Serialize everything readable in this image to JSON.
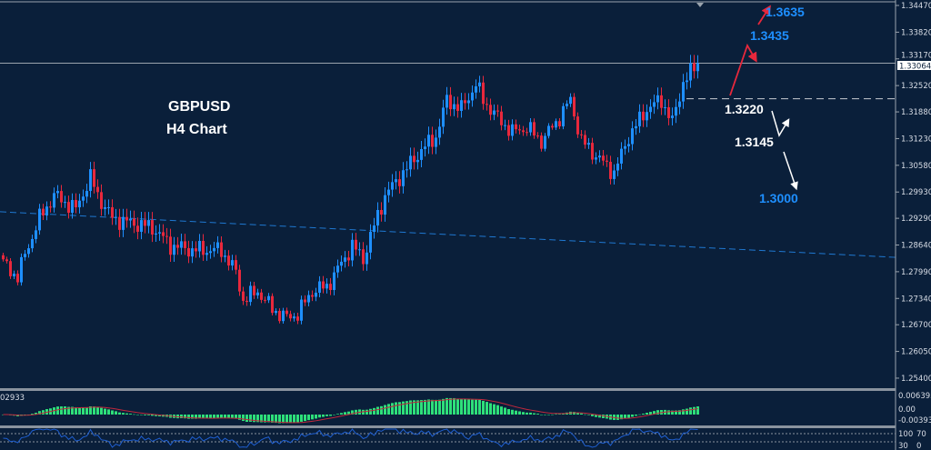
{
  "chart_data": {
    "type": "candlestick",
    "symbol_label": "GBPUSD",
    "timeframe_label": "H4 Chart",
    "ylim": [
      1.25,
      1.346
    ],
    "y_ticks": [
      "1.34470",
      "1.33820",
      "1.33170",
      "1.32520",
      "1.31880",
      "1.31230",
      "1.30580",
      "1.29930",
      "1.29290",
      "1.28640",
      "1.27990",
      "1.27340",
      "1.26700",
      "1.26050",
      "1.25400"
    ],
    "current_price": "1.33064",
    "close_path": [
      [
        0,
        1.2819
      ],
      [
        4,
        1.2786
      ],
      [
        6,
        1.2841
      ],
      [
        10,
        1.2929
      ],
      [
        14,
        1.2985
      ],
      [
        16,
        1.2974
      ],
      [
        20,
        1.2951
      ],
      [
        24,
        1.3029
      ],
      [
        26,
        1.2985
      ],
      [
        30,
        1.2929
      ],
      [
        35,
        1.2918
      ],
      [
        41,
        1.2907
      ],
      [
        46,
        1.2863
      ],
      [
        52,
        1.2852
      ],
      [
        60,
        1.2852
      ],
      [
        64,
        1.2797
      ],
      [
        66,
        1.273
      ],
      [
        70,
        1.2752
      ],
      [
        74,
        1.2708
      ],
      [
        78,
        1.2686
      ],
      [
        81,
        1.2697
      ],
      [
        85,
        1.2752
      ],
      [
        89,
        1.2763
      ],
      [
        93,
        1.2819
      ],
      [
        96,
        1.2863
      ],
      [
        99,
        1.283
      ],
      [
        101,
        1.2885
      ],
      [
        105,
        1.2985
      ],
      [
        110,
        1.304
      ],
      [
        115,
        1.3095
      ],
      [
        119,
        1.3128
      ],
      [
        122,
        1.3217
      ],
      [
        126,
        1.3195
      ],
      [
        130,
        1.3255
      ],
      [
        132,
        1.3217
      ],
      [
        136,
        1.3173
      ],
      [
        140,
        1.3139
      ],
      [
        144,
        1.315
      ],
      [
        148,
        1.3117
      ],
      [
        152,
        1.3162
      ],
      [
        156,
        1.3217
      ],
      [
        159,
        1.3117
      ],
      [
        164,
        1.3073
      ],
      [
        168,
        1.304
      ],
      [
        172,
        1.3128
      ],
      [
        177,
        1.3195
      ],
      [
        181,
        1.3217
      ],
      [
        184,
        1.3162
      ],
      [
        187,
        1.3261
      ],
      [
        189,
        1.3283
      ],
      [
        191,
        1.3306
      ]
    ],
    "moving_average": {
      "style": "dashed",
      "color": "#1f78d1",
      "start": 1.2945,
      "end": 1.2834
    },
    "levels": [
      {
        "price": 1.33064,
        "style": "solid",
        "color": "#9aa3ad"
      },
      {
        "price": 1.322,
        "style": "dashed",
        "color": "#c8ccd2"
      }
    ],
    "annotations": [
      {
        "text": "1.3635",
        "color": "#1e8fff"
      },
      {
        "text": "1.3435",
        "color": "#1e8fff"
      },
      {
        "text": "1.3220",
        "color": "#ffffff"
      },
      {
        "text": "1.3145",
        "color": "#ffffff"
      },
      {
        "text": "1.3000",
        "color": "#1e8fff"
      }
    ],
    "colors": {
      "background": "#0a1f3a",
      "up": "#1e8fff",
      "down": "#e8283c",
      "macd_hist": "#2ee07a",
      "macd_signal": "#c0283c",
      "oscillator": "#1f5fd1"
    },
    "macd": {
      "value_label": "02933",
      "ticks": [
        "0.006393",
        "0.00",
        "-0.00393"
      ]
    },
    "oscillator": {
      "ticks": [
        "100",
        "70",
        "30",
        "0"
      ]
    }
  }
}
